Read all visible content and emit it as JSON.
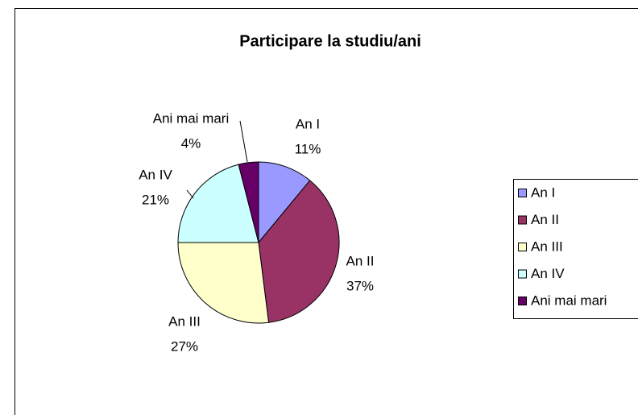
{
  "chart_data": {
    "type": "pie",
    "title": "Participare la studiu/ani",
    "categories": [
      "An I",
      "An II",
      "An III",
      "An IV",
      "Ani mai mari"
    ],
    "values": [
      11,
      37,
      27,
      21,
      4
    ],
    "value_labels": [
      "11%",
      "37%",
      "27%",
      "21%",
      "4%"
    ],
    "colors": [
      "#9999ff",
      "#993366",
      "#ffffcc",
      "#ccffff",
      "#660066"
    ],
    "legend": "right"
  }
}
